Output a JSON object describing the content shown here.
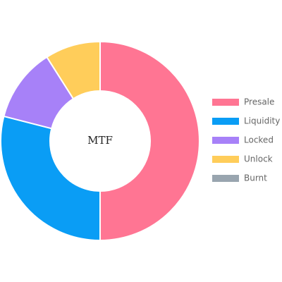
{
  "chart_data": {
    "type": "pie",
    "variant": "doughnut",
    "center_label": "MTF",
    "categories": [
      "Presale",
      "Liquidity",
      "Locked",
      "Unlock",
      "Burnt"
    ],
    "values": [
      50,
      29,
      12,
      9,
      0
    ],
    "unit": "%",
    "colors": [
      "#ff7593",
      "#0a9df5",
      "#a781f8",
      "#ffcd5a",
      "#99a5af"
    ],
    "slice_border_color": "#ffffff",
    "start_angle": "top",
    "direction": "clockwise",
    "legend": {
      "position": "right",
      "entries": [
        "Presale",
        "Liquidity",
        "Locked",
        "Unlock",
        "Burnt"
      ]
    }
  }
}
